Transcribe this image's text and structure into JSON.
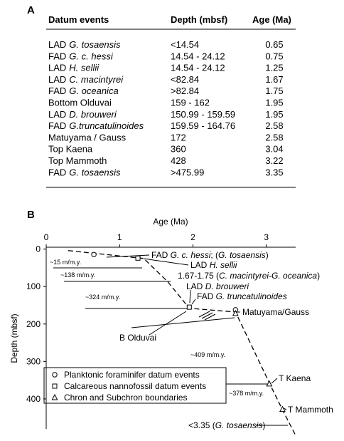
{
  "panel_a": {
    "label": "A",
    "table": {
      "header": [
        "Datum events",
        "Depth (mbsf)",
        "Age (Ma)"
      ],
      "rows": [
        {
          "event": [
            "LAD",
            "G. tosaensis"
          ],
          "depth": "<14.54",
          "age": 0.65
        },
        {
          "event": [
            "FAD",
            "G. c. hessi"
          ],
          "depth": "14.54 - 24.12",
          "age": 0.75
        },
        {
          "event": [
            "LAD",
            "H. sellii"
          ],
          "depth": "14.54 - 24.12",
          "age": 1.25
        },
        {
          "event": [
            "LAD",
            "C. macintyrei"
          ],
          "depth": "<82.84",
          "age": 1.67
        },
        {
          "event": [
            "FAD",
            "G. oceanica"
          ],
          "depth": ">82.84",
          "age": 1.75
        },
        {
          "event": [
            "Bottom Olduvai"
          ],
          "depth": "159 - 162",
          "age": 1.95
        },
        {
          "event": [
            "LAD",
            "D. brouweri"
          ],
          "depth": "150.99 - 159.59",
          "age": 1.95
        },
        {
          "event": [
            "FAD",
            "G.truncatulinoides"
          ],
          "depth": "159.59 - 164.76",
          "age": 2.58
        },
        {
          "event": [
            "Matuyama / Gauss"
          ],
          "depth": "172",
          "age": 2.58
        },
        {
          "event": [
            "Top Kaena"
          ],
          "depth": "360",
          "age": 3.04
        },
        {
          "event": [
            "Top Mammoth"
          ],
          "depth": "428",
          "age": 3.22
        },
        {
          "event": [
            "FAD",
            "G. tosaensis"
          ],
          "depth": ">475.99",
          "age": 3.35
        }
      ]
    }
  },
  "chart_data": {
    "type": "scatter",
    "panel_label": "B",
    "xlabel": "Age (Ma)",
    "ylabel": "Depth (mbsf)",
    "xlim": [
      0,
      3.4
    ],
    "ylim": [
      -5,
      480
    ],
    "xticks": [
      0,
      1,
      2,
      3
    ],
    "yticks": [
      0,
      100,
      200,
      300,
      400
    ],
    "series": [
      {
        "name": "Planktonic foraminifer datum events",
        "marker": "circle",
        "x": [
          0.65,
          2.58
        ],
        "y": [
          14.54,
          162
        ]
      },
      {
        "name": "Calcareous nannofossil datum events",
        "marker": "square",
        "x": [
          1.25,
          1.95
        ],
        "y": [
          24.12,
          155
        ]
      },
      {
        "name": "Chron and Subchron boundaries",
        "marker": "triangle",
        "x": [
          2.58,
          3.04,
          3.22
        ],
        "y": [
          172,
          360,
          428
        ]
      }
    ],
    "age_model": {
      "x": [
        0.3,
        1.33,
        1.66,
        1.95,
        2.58,
        3.06,
        3.22,
        3.39
      ],
      "y": [
        4,
        25,
        88,
        158,
        168,
        365,
        429,
        494
      ]
    },
    "annotations": [
      [
        "FAD ",
        "G. c. hessi",
        "; (",
        "G. tosaensis",
        ")"
      ],
      [
        "LAD ",
        "H. sellii"
      ],
      [
        "1.67-1.75 (",
        "C. macintyrei-G. oceanica",
        ")"
      ],
      [
        "LAD ",
        "D. brouweri"
      ],
      [
        "FAD ",
        "G. truncatulinoides"
      ],
      [
        "Matuyama/Gauss"
      ],
      [
        "B Olduvai"
      ],
      [
        "T Kaena"
      ],
      [
        "T Mammoth"
      ],
      [
        "<3.35 (",
        "G. tosaensis",
        ")"
      ]
    ],
    "rates": [
      "~15 m/m.y.",
      "~138 m/m.y.",
      "~324 m/m.y.",
      "~409 m/m.y.",
      "~378 m/m.y."
    ]
  }
}
